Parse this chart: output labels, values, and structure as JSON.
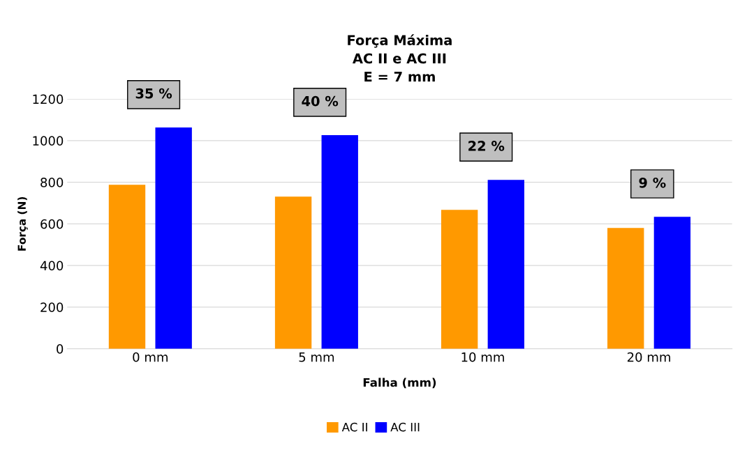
{
  "chart_data": {
    "type": "bar",
    "title": "Força Máxima\nAC II e AC III\nE = 7 mm",
    "xlabel": "Falha (mm)",
    "ylabel": "Força (N)",
    "categories": [
      "0 mm",
      "5 mm",
      "10 mm",
      "20 mm"
    ],
    "series": [
      {
        "name": "AC II",
        "color": "#ff9900",
        "values": [
          788,
          731,
          667,
          580
        ]
      },
      {
        "name": "AC III",
        "color": "#0000ff",
        "values": [
          1063,
          1026,
          811,
          634
        ]
      }
    ],
    "ylim": [
      0,
      1200
    ],
    "yticks": [
      0,
      200,
      400,
      600,
      800,
      1000,
      1200
    ],
    "grid": "y",
    "legend": "bottom",
    "annotations": [
      "35 %",
      "40 %",
      "22 %",
      "9 %"
    ]
  }
}
